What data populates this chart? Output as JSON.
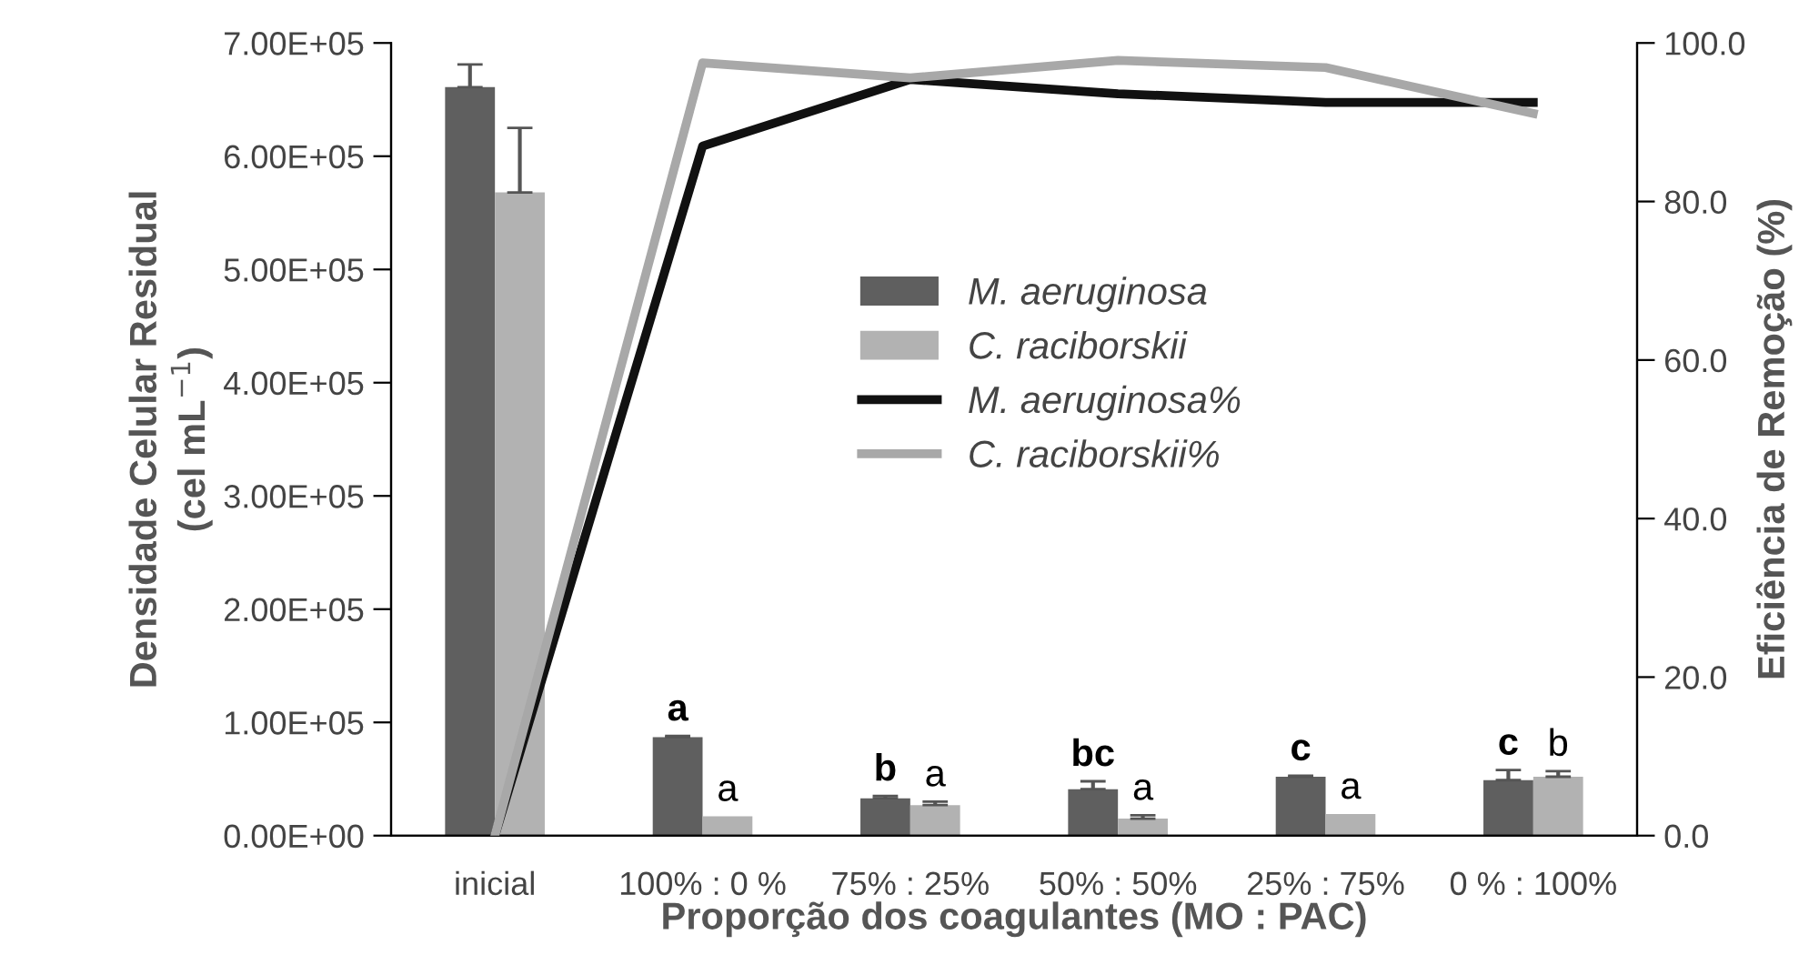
{
  "chart_data": {
    "type": "bar",
    "xlabel": "Proporção dos coagulantes (MO : PAC)",
    "ylabel": "Densidade Celular Residual\n(cel mL$^{−1}$)",
    "y2label": "Eficiência de Remoção (%)",
    "categories": [
      "inicial",
      "100% : 0 %",
      "75% : 25%",
      "50% : 50%",
      "25% : 75%",
      "0 % : 100%"
    ],
    "series": [
      {
        "name": "M. aeruginosa",
        "color": "#5f5f5f",
        "values": [
          661000,
          87000,
          33000,
          41000,
          52000,
          49000
        ],
        "errors": [
          [
            661000,
            681000
          ],
          [
            87000,
            88000
          ],
          [
            33000,
            35000
          ],
          [
            41000,
            48000
          ],
          [
            52000,
            53000
          ],
          [
            49000,
            58000
          ]
        ],
        "value_labels": [
          null,
          "a",
          "b",
          "bc",
          "c",
          "c"
        ]
      },
      {
        "name": "C. raciborskii",
        "color": "#b2b2b2",
        "values": [
          568000,
          17000,
          27000,
          15000,
          19000,
          52000
        ],
        "errors": [
          [
            568000,
            625000
          ],
          null,
          [
            27000,
            30000
          ],
          [
            15000,
            18000
          ],
          null,
          [
            52000,
            57000
          ]
        ],
        "value_labels": [
          null,
          "a",
          "a",
          "a",
          "a",
          "b"
        ]
      },
      {
        "name": "M. aeruginosa%",
        "type": "line",
        "axis": "y2",
        "color": "#111111",
        "values": [
          0,
          87.0,
          95.4,
          93.6,
          92.5,
          92.5
        ]
      },
      {
        "name": "C. raciborskii%",
        "type": "line",
        "axis": "y2",
        "color": "#a8a8a8",
        "values": [
          0,
          97.5,
          95.6,
          97.8,
          96.9,
          91.1
        ]
      }
    ],
    "ylim": [
      0,
      700000
    ],
    "yticks": [
      {
        "value": 0,
        "label": "0.00E+00"
      },
      {
        "value": 100000,
        "label": "1.00E+05"
      },
      {
        "value": 200000,
        "label": "2.00E+05"
      },
      {
        "value": 300000,
        "label": "3.00E+05"
      },
      {
        "value": 400000,
        "label": "4.00E+05"
      },
      {
        "value": 500000,
        "label": "5.00E+05"
      },
      {
        "value": 600000,
        "label": "6.00E+05"
      },
      {
        "value": 700000,
        "label": "7.00E+05"
      }
    ],
    "y2lim": [
      0,
      100
    ],
    "y2ticks": [
      {
        "value": 0,
        "label": "0.0"
      },
      {
        "value": 20,
        "label": "20.0"
      },
      {
        "value": 40,
        "label": "40.0"
      },
      {
        "value": 60,
        "label": "60.0"
      },
      {
        "value": 80,
        "label": "80.0"
      },
      {
        "value": 100,
        "label": "100.0"
      }
    ],
    "grid": false,
    "legend": "center",
    "marker": "none",
    "line_style": "solid"
  }
}
